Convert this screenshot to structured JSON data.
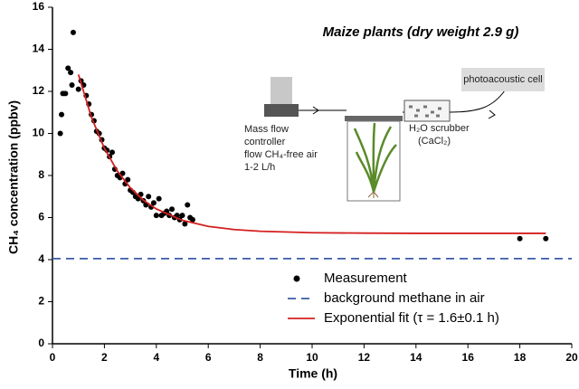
{
  "chart_data": {
    "type": "scatter",
    "title": "Maize plants (dry weight 2.9 g)",
    "xlabel": "Time (h)",
    "ylabel": "CH₄ concentration (ppbv)",
    "xlim": [
      0,
      20
    ],
    "xticks": [
      0,
      2,
      4,
      6,
      8,
      10,
      12,
      14,
      16,
      18,
      20
    ],
    "ylim": [
      0,
      16
    ],
    "yticks": [
      0,
      2,
      4,
      6,
      8,
      10,
      12,
      14,
      16
    ],
    "series": [
      {
        "name": "Measurement",
        "style": "markers",
        "color": "#000000",
        "x": [
          0.3,
          0.35,
          0.4,
          0.5,
          0.6,
          0.7,
          0.8,
          0.75,
          1.0,
          1.1,
          1.2,
          1.3,
          1.4,
          1.5,
          1.6,
          1.7,
          1.8,
          1.9,
          2.0,
          2.1,
          2.2,
          2.3,
          2.4,
          2.5,
          2.6,
          2.7,
          2.8,
          2.9,
          3.0,
          3.1,
          3.2,
          3.3,
          3.4,
          3.5,
          3.6,
          3.7,
          3.8,
          3.9,
          4.0,
          4.1,
          4.2,
          4.3,
          4.4,
          4.5,
          4.6,
          4.7,
          4.8,
          4.9,
          5.0,
          5.1,
          5.2,
          5.3,
          5.4,
          18,
          19
        ],
        "values": [
          10.0,
          10.9,
          11.9,
          11.9,
          13.1,
          12.9,
          14.8,
          12.3,
          12.1,
          12.5,
          12.3,
          11.8,
          11.4,
          10.9,
          10.6,
          10.1,
          10.0,
          9.7,
          9.3,
          9.2,
          8.9,
          9.1,
          8.3,
          8.0,
          7.9,
          8.1,
          7.6,
          7.8,
          7.3,
          7.2,
          7.0,
          6.9,
          7.1,
          6.8,
          6.6,
          7.0,
          6.5,
          6.7,
          6.1,
          6.9,
          6.1,
          6.2,
          6.3,
          6.1,
          6.4,
          6.0,
          6.1,
          5.9,
          6.1,
          5.7,
          6.6,
          6.0,
          5.9,
          5.0,
          5.0
        ]
      },
      {
        "name": "background methane in air",
        "style": "dashed",
        "color": "#3a5ca8",
        "x": [
          0,
          20
        ],
        "values": [
          4.05,
          4.05
        ]
      },
      {
        "name": "Exponential fit (τ = 1.6±0.1 h)",
        "style": "solid",
        "color": "#d42020",
        "x": [
          1,
          1.5,
          2,
          2.5,
          3,
          3.5,
          4,
          5,
          6,
          7,
          8,
          10,
          12,
          14,
          16,
          19
        ],
        "values": [
          12.8,
          10.77,
          9.29,
          8.21,
          7.41,
          6.83,
          6.41,
          5.87,
          5.58,
          5.43,
          5.35,
          5.28,
          5.26,
          5.25,
          5.25,
          5.25
        ]
      }
    ],
    "inset": {
      "cell": "photoacoustic cell",
      "controller": [
        "Mass flow",
        "controller",
        "flow CH₄-free air",
        "1-2 L/h"
      ],
      "scrubber": [
        "H₂O scrubber",
        "(CaCl₂)"
      ]
    }
  }
}
